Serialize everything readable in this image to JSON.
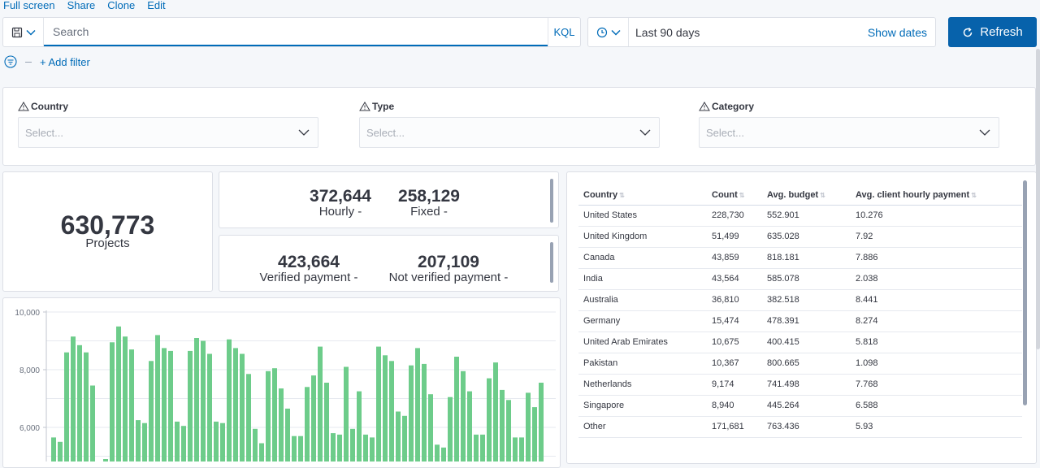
{
  "topnav": [
    "Full screen",
    "Share",
    "Clone",
    "Edit"
  ],
  "query": {
    "placeholder": "Search",
    "language": "KQL"
  },
  "time": {
    "range": "Last 90 days",
    "show_dates": "Show dates"
  },
  "refresh_label": "Refresh",
  "add_filter": "+ Add filter",
  "controls": [
    {
      "label": "Country",
      "placeholder": "Select..."
    },
    {
      "label": "Type",
      "placeholder": "Select..."
    },
    {
      "label": "Category",
      "placeholder": "Select..."
    }
  ],
  "metric_total": {
    "value": "630,773",
    "label": "Projects"
  },
  "metric_type": [
    {
      "value": "372,644",
      "label": "Hourly -"
    },
    {
      "value": "258,129",
      "label": "Fixed -"
    }
  ],
  "metric_payment": [
    {
      "value": "423,664",
      "label": "Verified payment -"
    },
    {
      "value": "207,109",
      "label": "Not verified payment -"
    }
  ],
  "table": {
    "headers": [
      "Country",
      "Count",
      "Avg. budget",
      "Avg. client hourly payment"
    ],
    "rows": [
      [
        "United States",
        "228,730",
        "552.901",
        "10.276"
      ],
      [
        "United Kingdom",
        "51,499",
        "635.028",
        "7.92"
      ],
      [
        "Canada",
        "43,859",
        "818.181",
        "7.886"
      ],
      [
        "India",
        "43,564",
        "585.078",
        "2.038"
      ],
      [
        "Australia",
        "36,810",
        "382.518",
        "8.441"
      ],
      [
        "Germany",
        "15,474",
        "478.391",
        "8.274"
      ],
      [
        "United Arab Emirates",
        "10,675",
        "400.415",
        "5.818"
      ],
      [
        "Pakistan",
        "10,367",
        "800.665",
        "1.098"
      ],
      [
        "Netherlands",
        "9,174",
        "741.498",
        "7.768"
      ],
      [
        "Singapore",
        "8,940",
        "445.264",
        "6.588"
      ],
      [
        "Other",
        "171,681",
        "763.436",
        "5.93"
      ]
    ]
  },
  "chart_data": {
    "type": "bar",
    "y_ticks": [
      "10,000",
      "8,000",
      "6,000"
    ],
    "ylim": [
      5000,
      10000
    ],
    "bar_color": "#6dcc8a",
    "values": [
      5650,
      5500,
      8600,
      9150,
      8850,
      8600,
      7450,
      4800,
      4900,
      8950,
      9500,
      9150,
      8700,
      6250,
      6150,
      8300,
      9200,
      8750,
      8650,
      6200,
      6050,
      8650,
      9100,
      9000,
      8550,
      6200,
      6150,
      9050,
      8750,
      8550,
      7850,
      5950,
      5450,
      7950,
      8050,
      7350,
      6650,
      5700,
      5700,
      7400,
      7800,
      8800,
      7550,
      5800,
      5750,
      8100,
      5950,
      7250,
      5750,
      5650,
      8800,
      8500,
      8300,
      6550,
      6400,
      8150,
      8750,
      8200,
      7150,
      5400,
      5300,
      7050,
      8450,
      7950,
      7250,
      5750,
      5750,
      7700,
      8250,
      7300,
      6950,
      5650,
      5650,
      7200,
      6700,
      7550
    ]
  }
}
